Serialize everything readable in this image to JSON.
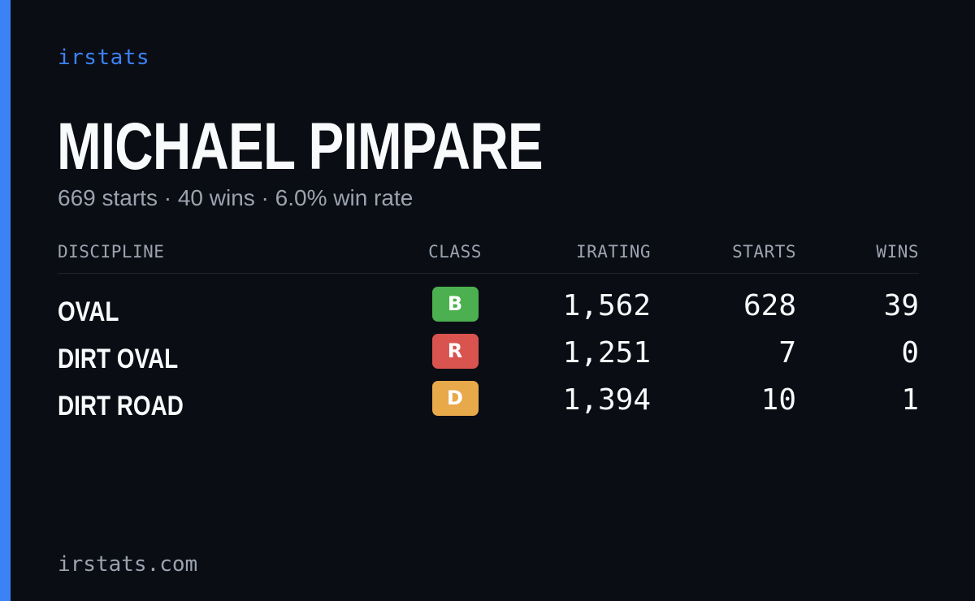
{
  "brand": "irstats",
  "driver": {
    "name": "MICHAEL PIMPARE",
    "summary": "669 starts · 40 wins · 6.0% win rate"
  },
  "table": {
    "headers": {
      "discipline": "DISCIPLINE",
      "class": "CLASS",
      "irating": "IRATING",
      "starts": "STARTS",
      "wins": "WINS"
    },
    "rows": [
      {
        "discipline": "OVAL",
        "class": "B",
        "class_color": "#4caf50",
        "irating": "1,562",
        "starts": "628",
        "wins": "39"
      },
      {
        "discipline": "DIRT OVAL",
        "class": "R",
        "class_color": "#d9534f",
        "irating": "1,251",
        "starts": "7",
        "wins": "0"
      },
      {
        "discipline": "DIRT ROAD",
        "class": "D",
        "class_color": "#e8a94a",
        "irating": "1,394",
        "starts": "10",
        "wins": "1"
      }
    ]
  },
  "footer": "irstats.com",
  "colors": {
    "background": "#0a0d14",
    "accent": "#3b82f6",
    "text": "#f8fafc",
    "muted": "#9ca3af"
  }
}
